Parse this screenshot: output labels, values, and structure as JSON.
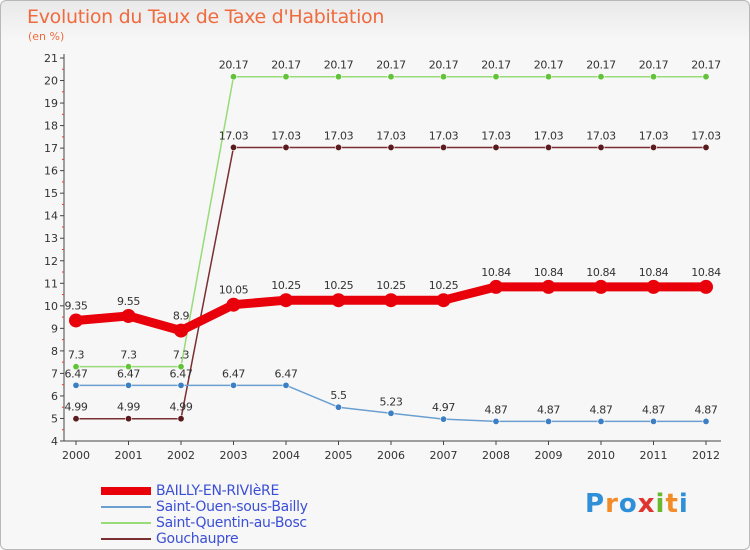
{
  "title": "Evolution du Taux de Taxe d'Habitation",
  "subtitle": "(en %)",
  "logo": {
    "text": "Proxiti",
    "letters": [
      {
        "ch": "P",
        "color": "#2f8fd8"
      },
      {
        "ch": "r",
        "color": "#f28c28"
      },
      {
        "ch": "o",
        "color": "#2f8fd8"
      },
      {
        "ch": "x",
        "color": "#e0342e"
      },
      {
        "ch": "i",
        "color": "#6ab82e"
      },
      {
        "ch": "t",
        "color": "#f28c28"
      },
      {
        "ch": "i",
        "color": "#2f8fd8"
      }
    ]
  },
  "chart_data": {
    "type": "line",
    "x": [
      "2000",
      "2001",
      "2002",
      "2003",
      "2004",
      "2005",
      "2006",
      "2007",
      "2008",
      "2009",
      "2010",
      "2011",
      "2012"
    ],
    "ylim": [
      4,
      21
    ],
    "yticks": [
      4,
      5,
      6,
      7,
      8,
      9,
      10,
      11,
      12,
      13,
      14,
      15,
      16,
      17,
      18,
      19,
      20,
      21
    ],
    "grid": false,
    "legend_position": "bottom-left",
    "series": [
      {
        "name": "BAILLY-EN-RIVIèRE",
        "color": "#e8000b",
        "point_color": "#e8000b",
        "width": "thick",
        "values": [
          9.35,
          9.55,
          8.9,
          10.05,
          10.25,
          10.25,
          10.25,
          10.25,
          10.84,
          10.84,
          10.84,
          10.84,
          10.84
        ],
        "labels": [
          "9.35",
          "9.55",
          "8.9",
          "10.05",
          "10.25",
          "10.25",
          "10.25",
          "10.25",
          "10.84",
          "10.84",
          "10.84",
          "10.84",
          "10.84"
        ]
      },
      {
        "name": "Saint-Ouen-sous-Bailly",
        "color": "#6a9fd0",
        "point_color": "#3d7fc2",
        "width": "thin",
        "values": [
          6.47,
          6.47,
          6.47,
          6.47,
          6.47,
          5.5,
          5.23,
          4.97,
          4.87,
          4.87,
          4.87,
          4.87,
          4.87
        ],
        "labels": [
          "6.47",
          "6.47",
          "6.47",
          "6.47",
          "6.47",
          "5.5",
          "5.23",
          "4.97",
          "4.87",
          "4.87",
          "4.87",
          "4.87",
          "4.87"
        ]
      },
      {
        "name": "Saint-Quentin-au-Bosc",
        "color": "#98db78",
        "point_color": "#62c23a",
        "width": "thin",
        "values": [
          7.3,
          7.3,
          7.3,
          20.17,
          20.17,
          20.17,
          20.17,
          20.17,
          20.17,
          20.17,
          20.17,
          20.17,
          20.17
        ],
        "labels": [
          "7.3",
          "7.3",
          "7.3",
          "20.17",
          "20.17",
          "20.17",
          "20.17",
          "20.17",
          "20.17",
          "20.17",
          "20.17",
          "20.17",
          "20.17"
        ]
      },
      {
        "name": "Gouchaupre",
        "color": "#7a2f33",
        "point_color": "#5a1b1f",
        "width": "thin",
        "values": [
          4.99,
          4.99,
          4.99,
          17.03,
          17.03,
          17.03,
          17.03,
          17.03,
          17.03,
          17.03,
          17.03,
          17.03,
          17.03
        ],
        "labels": [
          "4.99",
          "4.99",
          "4.99",
          "17.03",
          "17.03",
          "17.03",
          "17.03",
          "17.03",
          "17.03",
          "17.03",
          "17.03",
          "17.03",
          "17.03"
        ]
      }
    ]
  }
}
